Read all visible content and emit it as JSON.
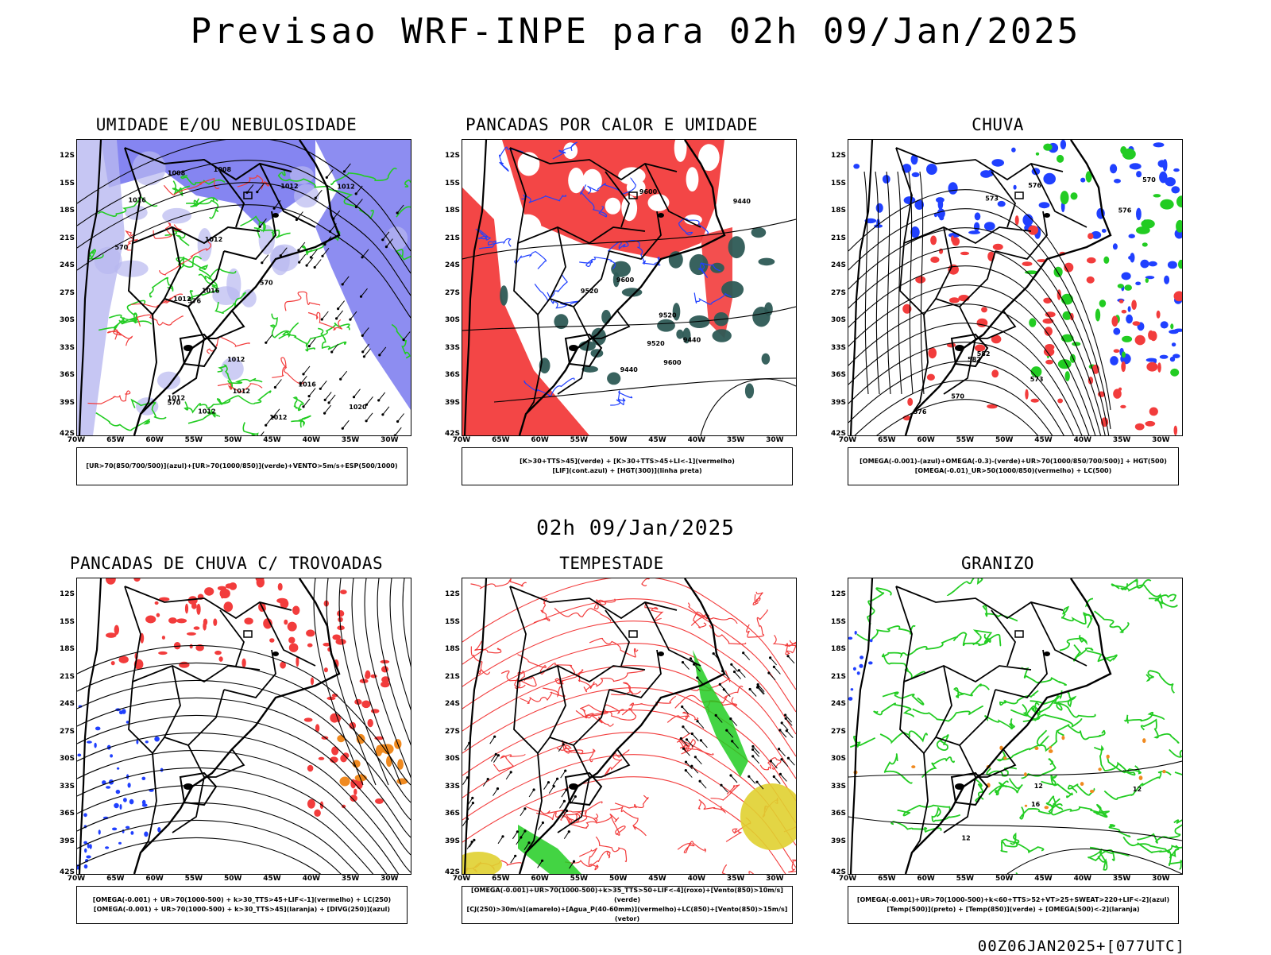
{
  "header": {
    "title": "Previsao WRF-INPE  para 02h 09/Jan/2025",
    "mid_date": "02h 09/Jan/2025",
    "footer": "00Z06JAN2025+[077UTC]"
  },
  "axes": {
    "lat_labels": [
      "12S",
      "15S",
      "18S",
      "21S",
      "24S",
      "27S",
      "30S",
      "33S",
      "36S",
      "39S",
      "42S"
    ],
    "lon_labels": [
      "70W",
      "65W",
      "60W",
      "55W",
      "50W",
      "45W",
      "40W",
      "35W",
      "30W"
    ]
  },
  "colors": {
    "red": "#f23c3c",
    "green": "#22cc22",
    "blue": "#2040ff",
    "purple_fill": "#7070ee",
    "lilac_fill": "#b8b8f0",
    "teal_fill": "#2d5a55",
    "orange": "#f08a20",
    "yellow": "#e0d030"
  },
  "panels": [
    {
      "title": "UMIDADE E/OU NEBULOSIDADE",
      "legend": [
        "[UR>70(850/700/500)](azul)+[UR>70(1000/850)](verde)+VENTO>5m/s+ESP(500/1000)"
      ],
      "contour_labels": [
        "1012",
        "1012",
        "1012",
        "1016",
        "1008",
        "1016",
        "1012",
        "1020",
        "1008",
        "1012",
        "1012",
        "1012",
        "1016",
        "1012",
        "1012",
        "570",
        "570",
        "570",
        "576"
      ]
    },
    {
      "title": "PANCADAS POR CALOR E UMIDADE",
      "legend": [
        "[K>30+TTS>45](verde) + [K>30+TTS>45+LI<-1](vermelho)",
        "[LIF](cont.azul) + [HGT(300)](linha preta)"
      ],
      "contour_labels": [
        "9600",
        "9600",
        "9600",
        "9520",
        "9520",
        "9520",
        "9440",
        "9440",
        "9440"
      ]
    },
    {
      "title": "CHUVA",
      "legend": [
        "[OMEGA(-0.001)-(azul)+OMEGA(-0.3)-(verde)+UR>70(1000/850/700/500)] + HGT(500)",
        "[OMEGA(-0.01)_UR>50(1000/850)(vermelho) + LC(500)"
      ],
      "contour_labels": [
        "582",
        "582",
        "576",
        "576",
        "573",
        "570",
        "570",
        "576",
        "573"
      ]
    },
    {
      "title": "PANCADAS DE CHUVA C/ TROVOADAS",
      "legend": [
        "[OMEGA(-0.001) + UR>70(1000-500) + k>30_TTS>45+LIF<-1](vermelho) + LC(250)",
        "[OMEGA(-0.001) + UR>70(1000-500) + k>30_TTS>45](laranja) + [DIVG(250)](azul)"
      ],
      "contour_labels": []
    },
    {
      "title": "TEMPESTADE",
      "legend": [
        "[OMEGA(-0.001)+UR>70(1000-500)+k>35_TTS>50+LIF<-4](roxo)+[Vento(850)>10m/s](verde)",
        "[CJ(250)>30m/s](amarelo)+[Agua_P(40-60mm)](vermelho)+LC(850)+[Vento(850)>15m/s](vetor)"
      ],
      "contour_labels": []
    },
    {
      "title": "GRANIZO",
      "legend": [
        "[OMEGA(-0.001)+UR>70(1000-500)+k<60+TTS>52+VT>25+SWEAT>220+LIF<-2](azul)",
        "[Temp(500)](preto) + [Temp(850)](verde) + [OMEGA(500)<-2](laranja)"
      ],
      "contour_labels": [
        "12",
        "12",
        "12",
        "16"
      ]
    }
  ]
}
